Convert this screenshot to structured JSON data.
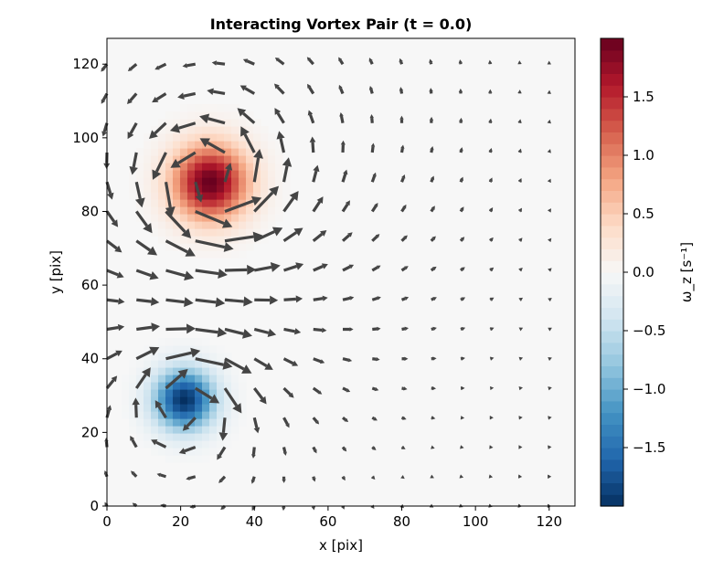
{
  "chart_data": {
    "type": "heatmap",
    "title": "Interacting Vortex Pair (t = 0.0)",
    "xlabel": "x [pix]",
    "ylabel": "y [pix]",
    "colorbar_label": "ω_z [s⁻¹]",
    "xlim": [
      0,
      127
    ],
    "ylim": [
      0,
      127
    ],
    "x_ticks": [
      "0",
      "20",
      "40",
      "60",
      "80",
      "100",
      "120"
    ],
    "y_ticks": [
      "0",
      "20",
      "40",
      "60",
      "80",
      "100",
      "120"
    ],
    "colorbar_range": [
      -2.0,
      2.0
    ],
    "colorbar_ticks": [
      "1.5",
      "1.0",
      "0.5",
      "0.0",
      "−0.5",
      "−1.0",
      "−1.5"
    ],
    "colormap": "RdBu_r",
    "colors": {
      "arrow": "#444444",
      "high": "#67001f",
      "low": "#053061",
      "neutral": "#f7f7f7"
    },
    "vortices": [
      {
        "name": "",
        "x": 28,
        "y": 88,
        "radius": 10,
        "peak_vorticity": 2.0,
        "sign": "positive"
      },
      {
        "name": "",
        "x": 21,
        "y": 29,
        "radius": 8,
        "peak_vorticity": -2.0,
        "sign": "negative"
      }
    ],
    "quiver": {
      "grid_start": 0,
      "grid_step": 8,
      "grid_count": 16
    }
  }
}
